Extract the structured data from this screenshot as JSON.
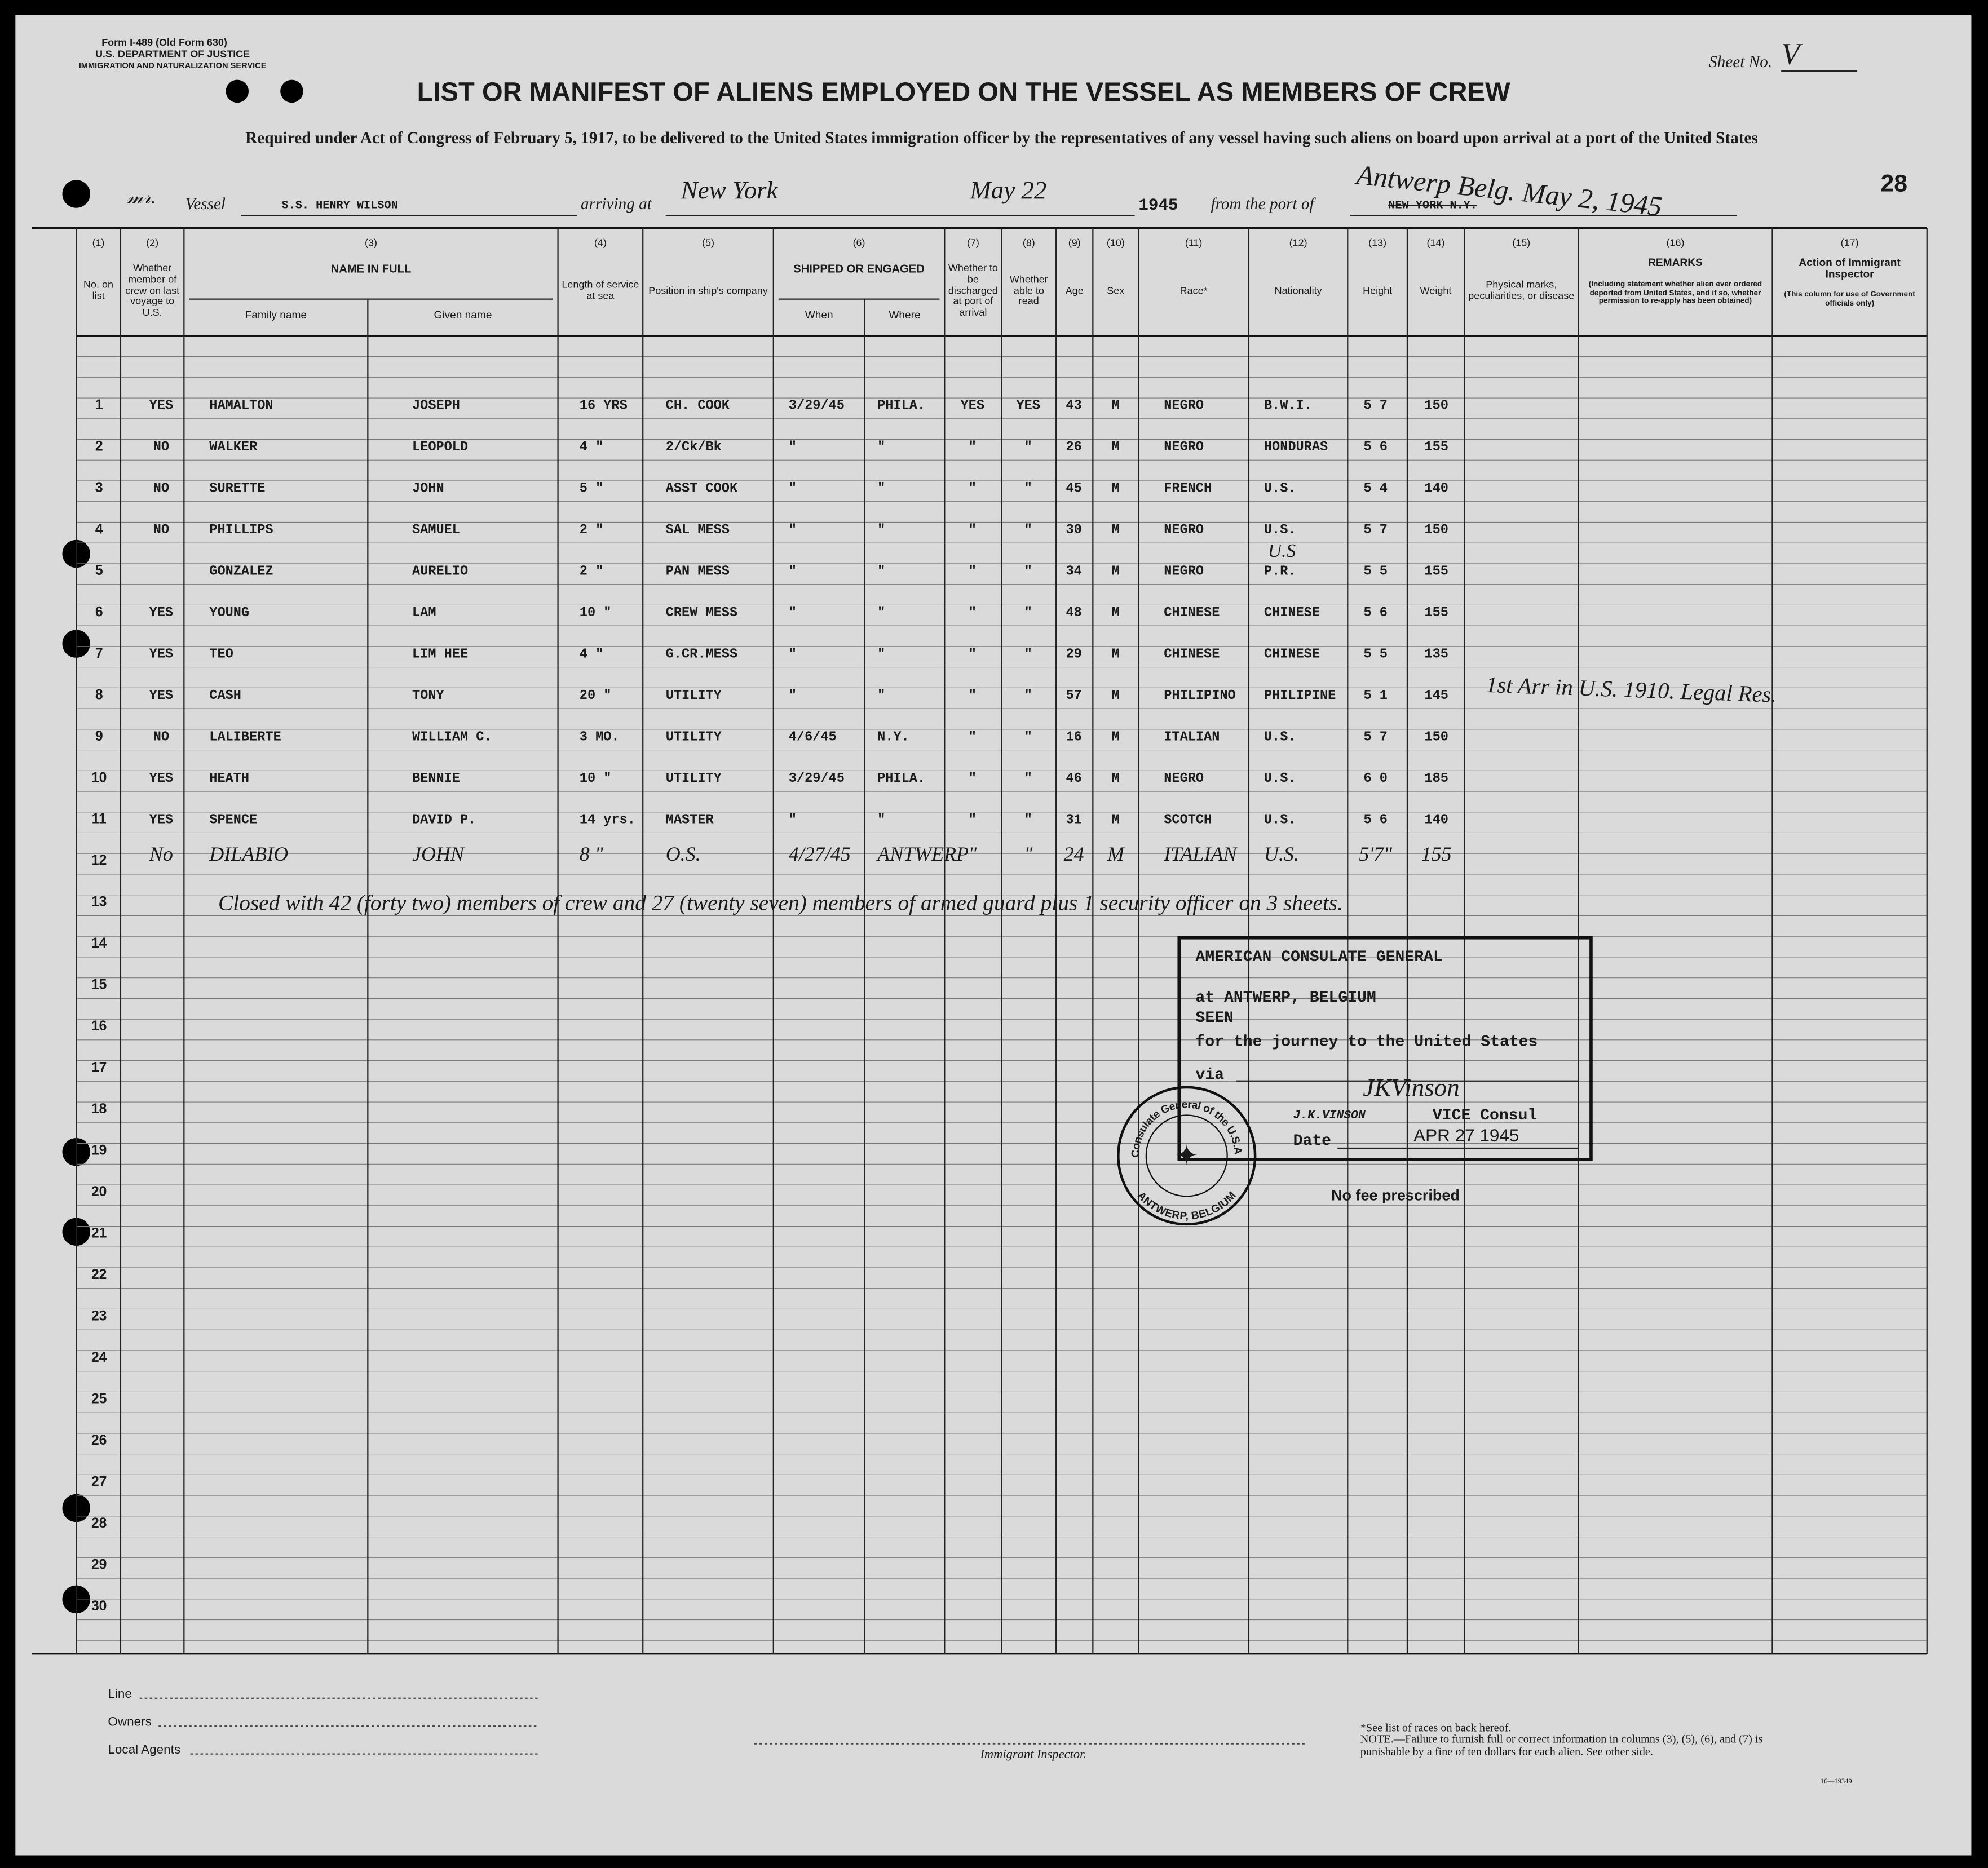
{
  "header": {
    "form": "Form I-489 (Old Form 630)",
    "department": "U.S. DEPARTMENT OF JUSTICE",
    "service": "IMMIGRATION AND NATURALIZATION SERVICE",
    "sheet_label": "Sheet No.",
    "sheet_no": "V",
    "title": "LIST OR MANIFEST OF ALIENS EMPLOYED ON THE VESSEL AS MEMBERS OF CREW",
    "subtitle": "Required under Act of Congress of February 5, 1917, to be delivered to the United States immigration officer by the representatives of any vessel having such aliens on board upon arrival at a port of the United States",
    "page_number": "28"
  },
  "vessel_line": {
    "vessel_label": "Vessel",
    "vessel": "S.S. HENRY WILSON",
    "arriving_label": "arriving at",
    "arriving_port": "New York",
    "arriving_date": "May 22",
    "year": "1945",
    "from_label": "from the port of",
    "port_typed": "NEW YORK N.Y.",
    "port_handwritten": "Antwerp Belg. May 2, 1945"
  },
  "table": {
    "columns": [
      {
        "number": "(1)",
        "heading": "No. on list"
      },
      {
        "number": "(2)",
        "heading": "Whether member of crew on last voyage to U.S."
      },
      {
        "number": "(3)",
        "heading": "NAME IN FULL",
        "subheadings": [
          "Family name",
          "Given name"
        ]
      },
      {
        "number": "(4)",
        "heading": "Length of service at sea"
      },
      {
        "number": "(5)",
        "heading": "Position in ship's company"
      },
      {
        "number": "(6)",
        "heading": "SHIPPED OR ENGAGED",
        "subheadings": [
          "When",
          "Where"
        ]
      },
      {
        "number": "(7)",
        "heading": "Whether to be discharged at port of arrival"
      },
      {
        "number": "(8)",
        "heading": "Whether able to read"
      },
      {
        "number": "(9)",
        "heading": "Age"
      },
      {
        "number": "(10)",
        "heading": "Sex"
      },
      {
        "number": "(11)",
        "heading": "Race*"
      },
      {
        "number": "(12)",
        "heading": "Nationality"
      },
      {
        "number": "(13)",
        "heading": "Height"
      },
      {
        "number": "(14)",
        "heading": "Weight"
      },
      {
        "number": "(15)",
        "heading": "Physical marks, peculiarities, or disease"
      },
      {
        "number": "(16)",
        "heading": "REMARKS",
        "note": "(Including statement whether alien ever ordered deported from United States, and if so, whether permission to re-apply has been obtained)"
      },
      {
        "number": "(17)",
        "heading": "Action of Immigrant Inspector",
        "note": "(This column for use of Government officials only)"
      }
    ],
    "row_numbers": [
      "1",
      "2",
      "3",
      "4",
      "5",
      "6",
      "7",
      "8",
      "9",
      "10",
      "11",
      "12",
      "13",
      "14",
      "15",
      "16",
      "17",
      "18",
      "19",
      "20",
      "21",
      "22",
      "23",
      "24",
      "25",
      "26",
      "27",
      "28",
      "29",
      "30"
    ],
    "rows": [
      [
        "YES",
        "HAMALTON",
        "JOSEPH",
        "16 YRS",
        "CH. COOK",
        "3/29/45",
        "PHILA.",
        "YES",
        "YES",
        "43",
        "M",
        "NEGRO",
        "B.W.I.",
        "5 7",
        "150"
      ],
      [
        "NO",
        "WALKER",
        "LEOPOLD",
        "4 \"",
        "2/Ck/Bk",
        "\"",
        "\"",
        "\"",
        "\"",
        "26",
        "M",
        "NEGRO",
        "HONDURAS",
        "5 6",
        "155"
      ],
      [
        "NO",
        "SURETTE",
        "JOHN",
        "5 \"",
        "ASST COOK",
        "\"",
        "\"",
        "\"",
        "\"",
        "45",
        "M",
        "FRENCH",
        "U.S.",
        "5 4",
        "140"
      ],
      [
        "NO",
        "PHILLIPS",
        "SAMUEL",
        "2 \"",
        "SAL MESS",
        "\"",
        "\"",
        "\"",
        "\"",
        "30",
        "M",
        "NEGRO",
        "U.S.",
        "5 7",
        "150"
      ],
      [
        "",
        "GONZALEZ",
        "AURELIO",
        "2 \"",
        "PAN MESS",
        "\"",
        "\"",
        "\"",
        "\"",
        "34",
        "M",
        "NEGRO",
        "P.R.",
        "5 5",
        "155"
      ],
      [
        "YES",
        "YOUNG",
        "LAM",
        "10 \"",
        "CREW MESS",
        "\"",
        "\"",
        "\"",
        "\"",
        "48",
        "M",
        "CHINESE",
        "CHINESE",
        "5 6",
        "155"
      ],
      [
        "YES",
        "TEO",
        "LIM HEE",
        "4 \"",
        "G.CR.MESS",
        "\"",
        "\"",
        "\"",
        "\"",
        "29",
        "M",
        "CHINESE",
        "CHINESE",
        "5 5",
        "135"
      ],
      [
        "YES",
        "CASH",
        "TONY",
        "20 \"",
        "UTILITY",
        "\"",
        "\"",
        "\"",
        "\"",
        "57",
        "M",
        "PHILIPINO",
        "PHILIPINE",
        "5 1",
        "145"
      ],
      [
        "NO",
        "LALIBERTE",
        "WILLIAM C.",
        "3 MO.",
        "UTILITY",
        "4/6/45",
        "N.Y.",
        "\"",
        "\"",
        "16",
        "M",
        "ITALIAN",
        "U.S.",
        "5 7",
        "150"
      ],
      [
        "YES",
        "HEATH",
        "BENNIE",
        "10 \"",
        "UTILITY",
        "3/29/45",
        "PHILA.",
        "\"",
        "\"",
        "46",
        "M",
        "NEGRO",
        "U.S.",
        "6 0",
        "185"
      ],
      [
        "YES",
        "SPENCE",
        "DAVID P.",
        "14 yrs.",
        "MASTER",
        "\"",
        "\"",
        "\"",
        "\"",
        "31",
        "M",
        "SCOTCH",
        "U.S.",
        "5 6",
        "140"
      ],
      [
        "No",
        "DILABIO",
        "JOHN",
        "8 \"",
        "O.S.",
        "4/27/45",
        "ANTWERP",
        "\"",
        "\"",
        "24",
        "M",
        "ITALIAN",
        "U.S.",
        "5'7\"",
        "155"
      ]
    ],
    "correction": "U.S",
    "remark": "1st Arr in U.S. 1910. Legal Res.",
    "closing_note": "Closed with 42 (forty two) members of crew and 27 (twenty seven) members of armed guard plus 1 security officer on 3 sheets."
  },
  "stamp": {
    "line1": "AMERICAN CONSULATE GENERAL",
    "line2": "at ANTWERP, BELGIUM",
    "line3": "SEEN",
    "line4": "for the journey to the United States",
    "via_label": "via",
    "officer": "J.K.VINSON",
    "officer_title": "VICE Consul",
    "date_label": "Date",
    "date": "APR 27 1945"
  },
  "seal": {
    "top": "Consulate General of the U.S.A.",
    "bottom": "ANTWERP, BELGIUM"
  },
  "no_fee": "No fee prescribed",
  "footer": {
    "line": "Line",
    "owners": "Owners",
    "local_agents": "Local Agents",
    "inspector": "Immigrant Inspector.",
    "race_note": "*See list of races on back hereof.",
    "note": "NOTE.—Failure to furnish full or correct information in columns (3), (5), (6), and (7) is punishable by a fine of ten dollars for each alien. See other side.",
    "form_code": "16—19349"
  }
}
